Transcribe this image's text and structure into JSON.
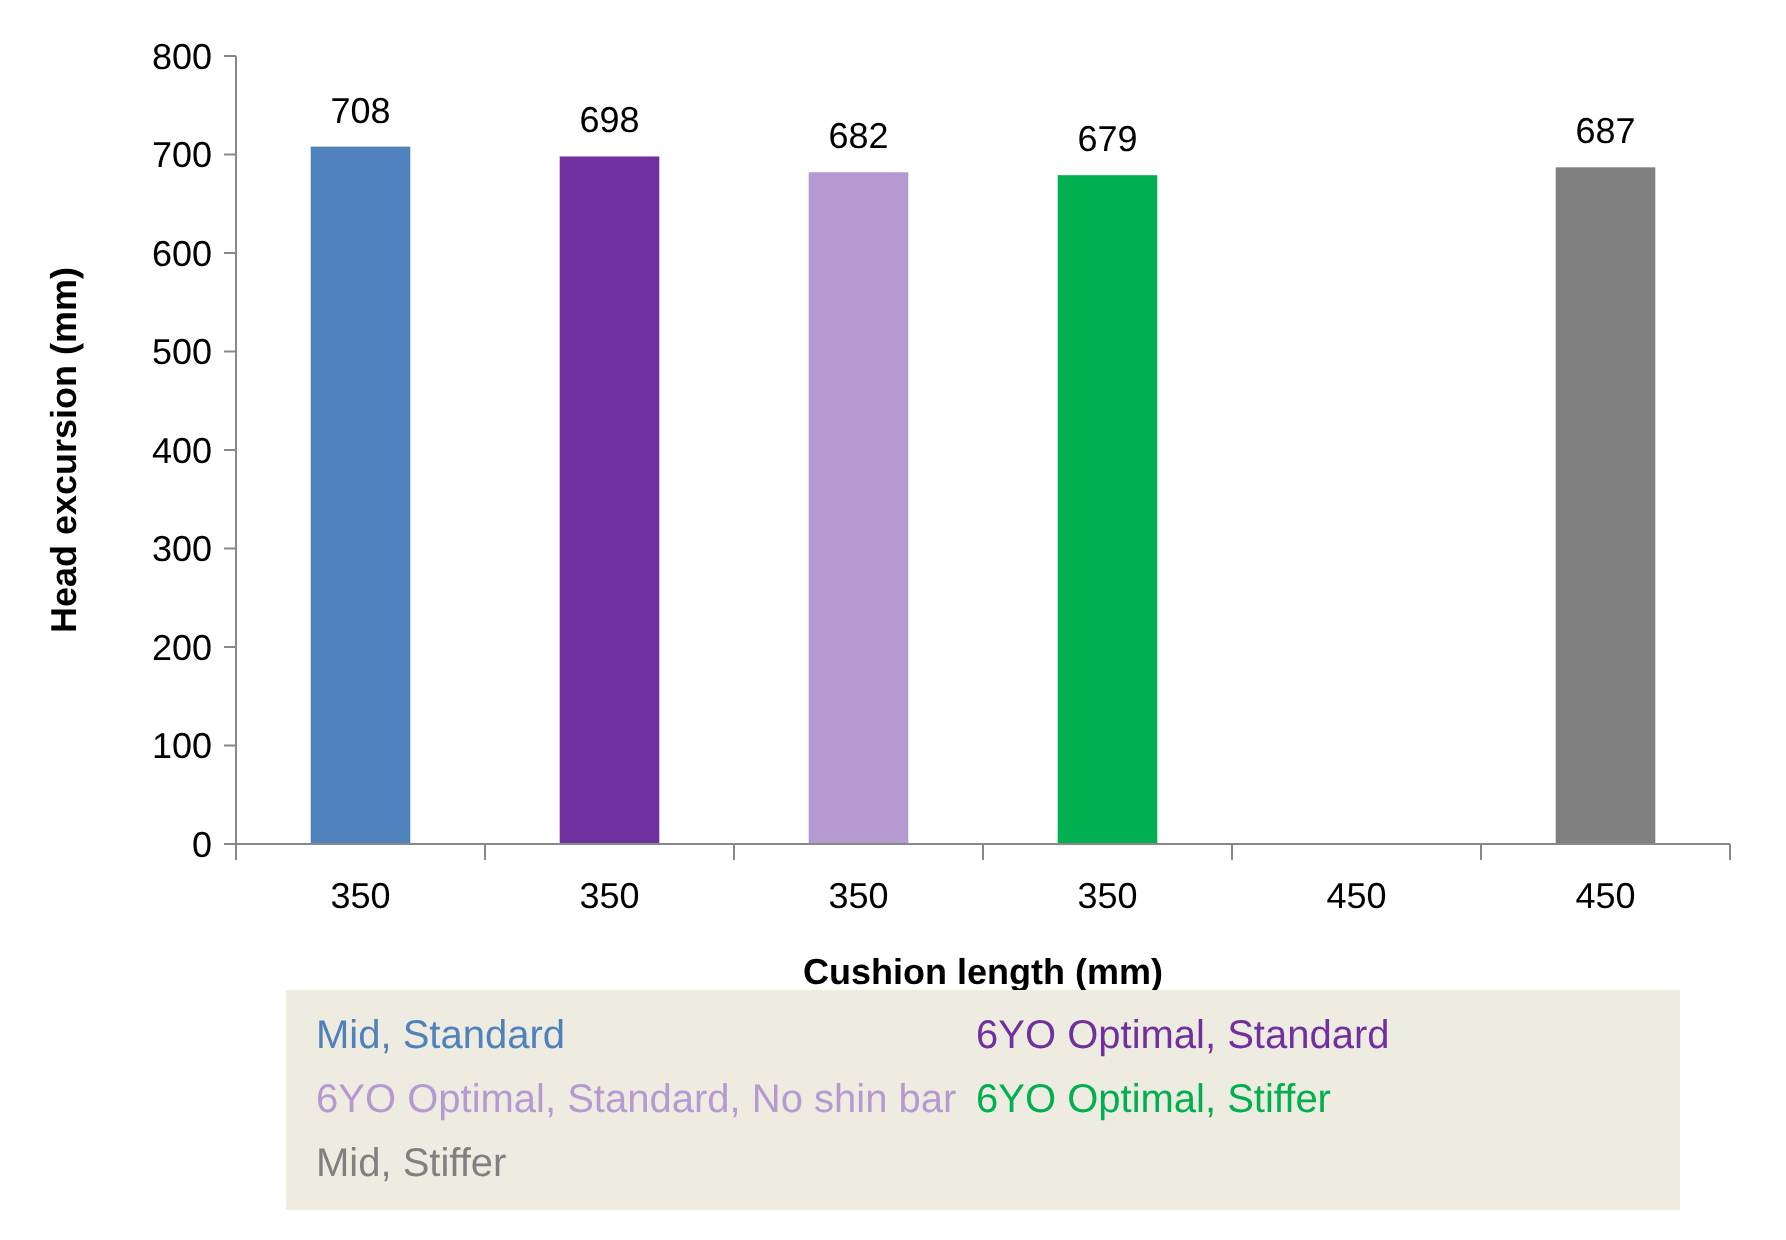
{
  "chart_data": {
    "type": "bar",
    "xlabel": "Cushion length (mm)",
    "ylabel": "Head excursion (mm)",
    "categories": [
      "350",
      "350",
      "350",
      "350",
      "450",
      "450"
    ],
    "series": [
      {
        "name": "Mid, Standard",
        "color": "#4f81bd",
        "values": [
          708,
          null,
          null,
          null,
          null,
          null
        ]
      },
      {
        "name": "6YO Optimal, Standard",
        "color": "#7030a0",
        "values": [
          null,
          698,
          null,
          null,
          null,
          null
        ]
      },
      {
        "name": "6YO Optimal, Standard, No shin bar",
        "color": "#b59ad2",
        "values": [
          null,
          null,
          682,
          null,
          null,
          null
        ]
      },
      {
        "name": "6YO Optimal, Stiffer",
        "color": "#00b050",
        "values": [
          null,
          null,
          null,
          679,
          null,
          null
        ]
      },
      {
        "name": "Mid, Stiffer",
        "color": "#808080",
        "values": [
          null,
          null,
          null,
          null,
          null,
          687
        ]
      }
    ],
    "ylim": [
      0,
      800
    ],
    "yticks": [
      0,
      100,
      200,
      300,
      400,
      500,
      600,
      700,
      800
    ],
    "data_labels": true,
    "legend": "bottom"
  }
}
